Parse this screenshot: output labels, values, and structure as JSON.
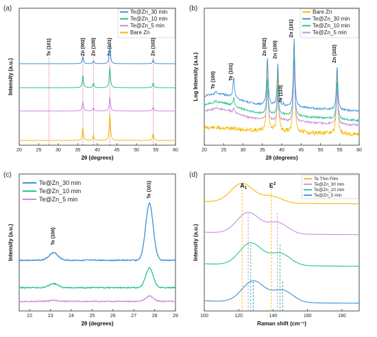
{
  "chart_data": [
    {
      "panel": "(a)",
      "type": "line",
      "title": "",
      "xlabel": "2θ (degrees)",
      "ylabel": "Intensity (a.u.)",
      "xlim": [
        20,
        60
      ],
      "x_ticks": [
        "20",
        "25",
        "30",
        "35",
        "40",
        "45",
        "50",
        "55",
        "60"
      ],
      "legend": [
        "Te@Zn_30 min",
        "Te@Zn_10 min",
        "Te@Zn_5 min",
        "Bare Zn"
      ],
      "legend_position": "top-right",
      "series": [
        {
          "name": "Te@Zn_30 min",
          "color": "#3a8fd6",
          "peaks": [
            {
              "x": 36.3,
              "h": 0.35
            },
            {
              "x": 39.0,
              "h": 0.12
            },
            {
              "x": 43.2,
              "h": 0.95
            },
            {
              "x": 54.3,
              "h": 0.2
            }
          ],
          "offset": 3
        },
        {
          "name": "Te@Zn_10 min",
          "color": "#22c48a",
          "peaks": [
            {
              "x": 36.3,
              "h": 0.6
            },
            {
              "x": 39.0,
              "h": 0.22
            },
            {
              "x": 43.2,
              "h": 1.0
            },
            {
              "x": 54.3,
              "h": 0.22
            }
          ],
          "offset": 2
        },
        {
          "name": "Te@Zn_5 min",
          "color": "#c98ae0",
          "peaks": [
            {
              "x": 36.3,
              "h": 0.45
            },
            {
              "x": 39.0,
              "h": 0.15
            },
            {
              "x": 43.2,
              "h": 0.7
            },
            {
              "x": 54.3,
              "h": 0.2
            }
          ],
          "offset": 1
        },
        {
          "name": "Bare Zn",
          "color": "#f5b800",
          "peaks": [
            {
              "x": 36.3,
              "h": 0.6
            },
            {
              "x": 39.0,
              "h": 0.25
            },
            {
              "x": 43.2,
              "h": 1.3
            },
            {
              "x": 54.3,
              "h": 0.35
            }
          ],
          "offset": 0
        }
      ],
      "reference_lines": [
        {
          "x": 27.6,
          "label": "Te (101)"
        },
        {
          "x": 36.3,
          "label": "Zn (002)"
        },
        {
          "x": 39.0,
          "label": "Zn (100)"
        },
        {
          "x": 43.2,
          "label": "Zn (101)"
        },
        {
          "x": 54.3,
          "label": "Zn (102)"
        }
      ]
    },
    {
      "panel": "(b)",
      "type": "line",
      "title": "",
      "xlabel": "2θ (degrees)",
      "ylabel": "Log Intensity (a.u.)",
      "xlim": [
        20,
        60
      ],
      "x_ticks": [
        "20",
        "25",
        "30",
        "35",
        "40",
        "45",
        "50",
        "55",
        "60"
      ],
      "legend": [
        "Bare Zn",
        "Te@Zn_30 min",
        "Te@Zn_10 min",
        "Te@Zn_5 min"
      ],
      "legend_position": "top-right",
      "series": [
        {
          "name": "Bare Zn",
          "color": "#f5b800"
        },
        {
          "name": "Te@Zn_30 min",
          "color": "#3a8fd6"
        },
        {
          "name": "Te@Zn_10 min",
          "color": "#22c48a"
        },
        {
          "name": "Te@Zn_5 min",
          "color": "#c98ae0"
        }
      ],
      "peaks": [
        {
          "x": 23.0,
          "label": "Te (100)"
        },
        {
          "x": 27.6,
          "label": "Te (101)"
        },
        {
          "x": 36.3,
          "label": "Zn (002)"
        },
        {
          "x": 39.0,
          "label": "Zn (100)"
        },
        {
          "x": 40.4,
          "label": "Te (110)"
        },
        {
          "x": 43.2,
          "label": "Zn (101)"
        },
        {
          "x": 54.3,
          "label": "Zn (102)"
        }
      ]
    },
    {
      "panel": "(c)",
      "type": "line",
      "title": "",
      "xlabel": "2θ (degrees)",
      "ylabel": "Intensity (a.u.)",
      "xlim": [
        21.5,
        29
      ],
      "x_ticks": [
        "22",
        "23",
        "24",
        "25",
        "26",
        "27",
        "28",
        "29"
      ],
      "legend": [
        "Te@Zn_30 min",
        "Te@Zn_10 min",
        "Te@Zn_5 min"
      ],
      "legend_position": "top-left",
      "series": [
        {
          "name": "Te@Zn_30 min",
          "color": "#3a8fd6",
          "peak1": 0.55,
          "peak2": 2.6,
          "offset": 2.0
        },
        {
          "name": "Te@Zn_10 min",
          "color": "#22c48a",
          "peak1": 0.3,
          "peak2": 0.9,
          "offset": 0.7
        },
        {
          "name": "Te@Zn_5 min",
          "color": "#c98ae0",
          "peak1": 0.08,
          "peak2": 0.25,
          "offset": 0.0
        }
      ],
      "annotations": [
        {
          "x": 23.1,
          "label": "Te (100)"
        },
        {
          "x": 27.7,
          "label": "Te (101)"
        }
      ]
    },
    {
      "panel": "(d)",
      "type": "line",
      "title": "",
      "xlabel": "Raman shift (cm⁻¹)",
      "ylabel": "Intensity (a.u.)",
      "xlim": [
        100,
        190
      ],
      "x_ticks": [
        "100",
        "120",
        "140",
        "160",
        "180"
      ],
      "legend": [
        "Te Thin Film",
        "Te@Zn_30 min",
        "Te@Zn_10 min",
        "Te@Zn_5 min"
      ],
      "legend_position": "top-right",
      "series": [
        {
          "name": "Te Thin Film",
          "color": "#f5b800",
          "a1": 122,
          "e2": 139,
          "a1_h": 1.0,
          "e2_h": 0.45,
          "offset": 3
        },
        {
          "name": "Te@Zn_30 min",
          "color": "#c98ae0",
          "a1": 125.5,
          "e2": 142.5,
          "a1_h": 1.1,
          "e2_h": 0.75,
          "offset": 2
        },
        {
          "name": "Te@Zn_10 min",
          "color": "#22c48a",
          "a1": 127,
          "e2": 144,
          "a1_h": 1.15,
          "e2_h": 0.8,
          "offset": 1
        },
        {
          "name": "Te@Zn_5 min",
          "color": "#3a8fd6",
          "a1": 128.5,
          "e2": 145.5,
          "a1_h": 1.1,
          "e2_h": 0.8,
          "offset": 0
        }
      ],
      "mode_labels": [
        "A",
        "E"
      ],
      "mode_labels_sub": [
        "1",
        ""
      ],
      "mode_labels_sup": [
        "",
        "2"
      ]
    }
  ]
}
